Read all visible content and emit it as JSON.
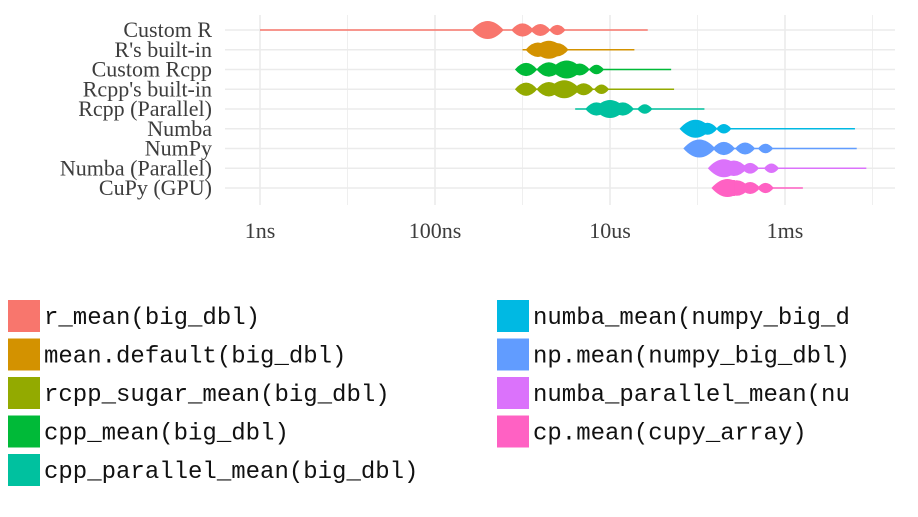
{
  "chart_data": {
    "type": "violin",
    "x_scale": "log10",
    "x_unit": "seconds",
    "x_ticks": [
      {
        "value": 1e-09,
        "label": "1ns"
      },
      {
        "value": 1e-07,
        "label": "100ns"
      },
      {
        "value": 1e-05,
        "label": "10us"
      },
      {
        "value": 0.001,
        "label": "1ms"
      }
    ],
    "xlim": [
      1e-09,
      0.01
    ],
    "grid": true,
    "legend_position": "bottom",
    "series": [
      {
        "label": "Custom R",
        "expr": "r_mean(big_dbl)",
        "color": "#F8766D",
        "min": 1e-09,
        "median": 4e-07,
        "max": 2.7e-05,
        "bulges": [
          [
            4e-07,
            1.0
          ],
          [
            1e-06,
            0.6
          ],
          [
            1.6e-06,
            0.5
          ],
          [
            2.5e-06,
            0.35
          ]
        ]
      },
      {
        "label": "R's built-in",
        "expr": "mean.default(big_dbl)",
        "color": "#D39200",
        "min": 1e-06,
        "median": 2e-06,
        "max": 1.9e-05,
        "bulges": [
          [
            1.5e-06,
            0.7
          ],
          [
            2e-06,
            1.0
          ],
          [
            2.5e-06,
            0.6
          ]
        ]
      },
      {
        "label": "Custom Rcpp",
        "expr": "cpp_mean(big_dbl)",
        "color": "#00BA38",
        "min": 1e-06,
        "median": 3.2e-06,
        "max": 5e-05,
        "bulges": [
          [
            1.1e-06,
            0.6
          ],
          [
            2e-06,
            0.7
          ],
          [
            3.2e-06,
            1.0
          ],
          [
            4.5e-06,
            0.5
          ],
          [
            7e-06,
            0.3
          ]
        ]
      },
      {
        "label": "Rcpp's built-in",
        "expr": "rcpp_sugar_mean(big_dbl)",
        "color": "#93AA00",
        "min": 1e-06,
        "median": 3e-06,
        "max": 5.4e-05,
        "bulges": [
          [
            1.1e-06,
            0.6
          ],
          [
            2e-06,
            0.7
          ],
          [
            3e-06,
            1.0
          ],
          [
            5e-06,
            0.5
          ],
          [
            8e-06,
            0.3
          ]
        ]
      },
      {
        "label": "Rcpp (Parallel)",
        "expr": "cpp_parallel_mean(big_dbl)",
        "color": "#00C19F",
        "min": 4e-06,
        "median": 1e-05,
        "max": 0.00012,
        "bulges": [
          [
            7e-06,
            0.6
          ],
          [
            1e-05,
            1.0
          ],
          [
            1.4e-05,
            0.6
          ],
          [
            2.5e-05,
            0.3
          ]
        ]
      },
      {
        "label": "Numba",
        "expr": "numba_mean(numpy_big_dbl)",
        "color": "#00B9E3",
        "min": 9e-05,
        "median": 0.0001,
        "max": 0.0063,
        "bulges": [
          [
            9.5e-05,
            1.0
          ],
          [
            0.00013,
            0.5
          ],
          [
            0.0002,
            0.3
          ]
        ]
      },
      {
        "label": "NumPy",
        "expr": "np.mean(numpy_big_dbl)",
        "color": "#619CFF",
        "min": 0.0001,
        "median": 0.00011,
        "max": 0.0066,
        "bulges": [
          [
            0.000105,
            1.0
          ],
          [
            0.0002,
            0.6
          ],
          [
            0.00035,
            0.5
          ],
          [
            0.0006,
            0.3
          ]
        ]
      },
      {
        "label": "Numba (Parallel)",
        "expr": "numba_parallel_mean(numpy_big_dbl)",
        "color": "#DB72FB",
        "min": 0.00015,
        "median": 0.00022,
        "max": 0.0085,
        "bulges": [
          [
            0.0002,
            1.0
          ],
          [
            0.00026,
            0.8
          ],
          [
            0.0004,
            0.4
          ],
          [
            0.0007,
            0.3
          ]
        ]
      },
      {
        "label": "CuPy (GPU)",
        "expr": "cp.mean(cupy_array)",
        "color": "#FF61C3",
        "min": 0.0002,
        "median": 0.00026,
        "max": 0.0016,
        "bulges": [
          [
            0.00022,
            1.0
          ],
          [
            0.00028,
            0.8
          ],
          [
            0.0004,
            0.5
          ],
          [
            0.0006,
            0.35
          ]
        ]
      }
    ],
    "legend": [
      {
        "text": "r_mean(big_dbl)",
        "color": "#F8766D"
      },
      {
        "text": "mean.default(big_dbl)",
        "color": "#D39200"
      },
      {
        "text": "rcpp_sugar_mean(big_dbl)",
        "color": "#93AA00"
      },
      {
        "text": "cpp_mean(big_dbl)",
        "color": "#00BA38"
      },
      {
        "text": "cpp_parallel_mean(big_dbl)",
        "color": "#00C19F"
      },
      {
        "text": "numba_mean(numpy_big_d",
        "color": "#00B9E3"
      },
      {
        "text": "np.mean(numpy_big_dbl)",
        "color": "#619CFF"
      },
      {
        "text": "numba_parallel_mean(nu",
        "color": "#DB72FB"
      },
      {
        "text": "cp.mean(cupy_array)",
        "color": "#FF61C3"
      }
    ]
  }
}
